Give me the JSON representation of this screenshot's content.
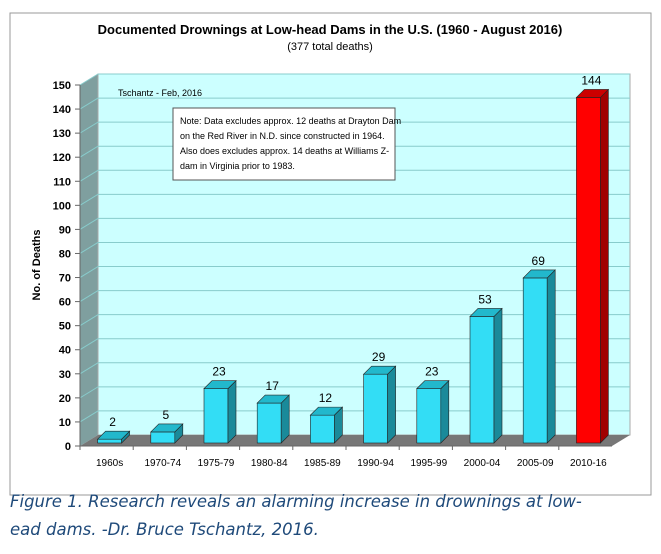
{
  "chart_data": {
    "type": "bar",
    "title": "Documented Drownings at Low-head Dams in the U.S. (1960 - August 2016)",
    "subtitle": "(377 total deaths)",
    "xlabel": "",
    "ylabel": "No. of Deaths",
    "ylim": [
      0,
      150
    ],
    "yticks": [
      0,
      10,
      20,
      30,
      40,
      50,
      60,
      70,
      80,
      90,
      100,
      110,
      120,
      130,
      140,
      150
    ],
    "grid": true,
    "style": "3d-column",
    "categories": [
      "1960s",
      "1970-74",
      "1975-79",
      "1980-84",
      "1985-89",
      "1990-94",
      "1995-99",
      "2000-04",
      "2005-09",
      "2010-16"
    ],
    "values": [
      2,
      5,
      23,
      17,
      12,
      29,
      23,
      53,
      69,
      144
    ],
    "bar_colors": [
      "#33ddf5",
      "#33ddf5",
      "#33ddf5",
      "#33ddf5",
      "#33ddf5",
      "#33ddf5",
      "#33ddf5",
      "#33ddf5",
      "#33ddf5",
      "#ff0000"
    ],
    "data_labels": [
      "2",
      "5",
      "23",
      "17",
      "12",
      "29",
      "23",
      "53",
      "69",
      "144"
    ],
    "annotations": {
      "credit": "Tschantz - Feb, 2016",
      "note": [
        "Note:  Data excludes approx. 12 deaths at Drayton Dam",
        "on the Red River in N.D. since constructed in 1964.",
        "Also does excludes approx. 14 deaths at Williams Z-",
        "dam in Virginia prior to 1983."
      ]
    },
    "colors": {
      "wall": "#ccffff",
      "side_wall": "#7f9f9f",
      "floor": "#777777"
    }
  },
  "caption": {
    "line1": "Figure 1. Research reveals an alarming increase in drownings at low-",
    "line2": "ead dams. -Dr. Bruce Tschantz, 2016."
  }
}
